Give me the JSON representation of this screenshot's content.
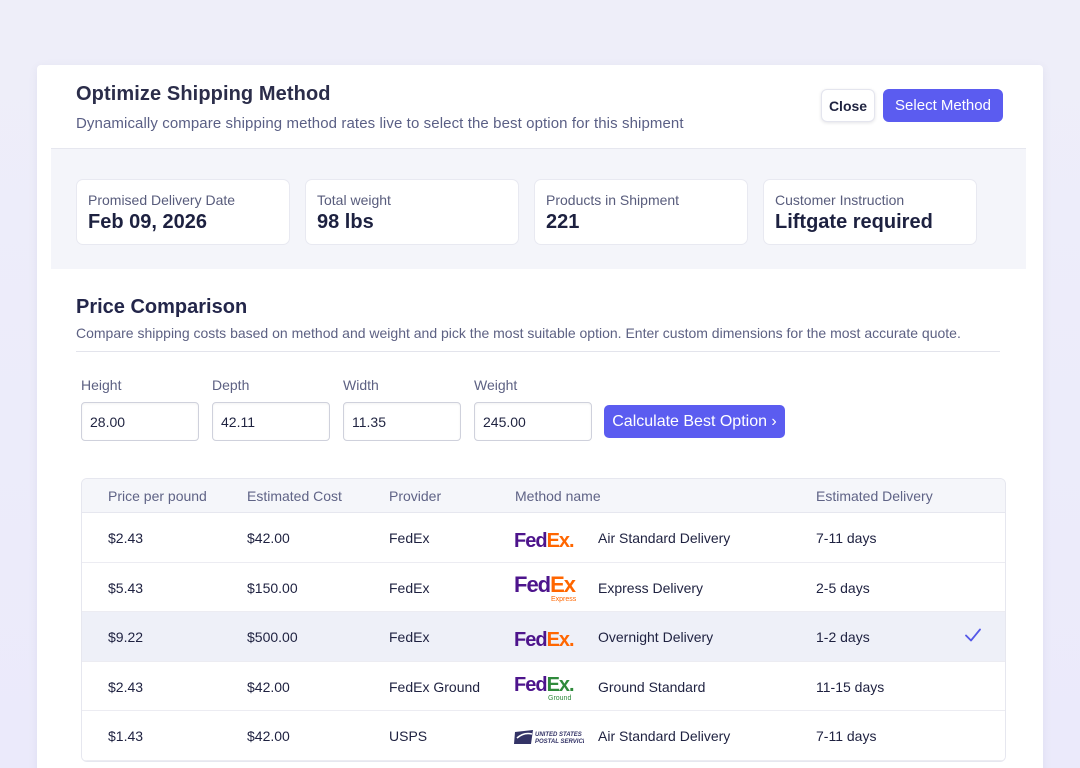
{
  "modal": {
    "title": "Optimize Shipping Method",
    "subtitle": "Dynamically compare shipping method rates live to select the best option for this shipment",
    "close_label": "Close",
    "select_label": "Select Method"
  },
  "summary": [
    {
      "label": "Promised Delivery Date",
      "value": "Feb 09, 2026"
    },
    {
      "label": "Total weight",
      "value": "98 lbs"
    },
    {
      "label": "Products in Shipment",
      "value": "221"
    },
    {
      "label": "Customer Instruction",
      "value": "Liftgate required"
    }
  ],
  "price_comparison": {
    "title": "Price Comparison",
    "description": "Compare shipping costs based on method and weight and pick the most suitable option. Enter custom dimensions for the most accurate quote."
  },
  "dimensions": {
    "height": {
      "label": "Height",
      "value": "28.00"
    },
    "depth": {
      "label": "Depth",
      "value": "42.11"
    },
    "width": {
      "label": "Width",
      "value": "11.35"
    },
    "weight": {
      "label": "Weight",
      "value": "245.00"
    },
    "calculate_label": "Calculate Best Option ›"
  },
  "table": {
    "headers": {
      "price": "Price per pound",
      "cost": "Estimated Cost",
      "provider": "Provider",
      "method": "Method name",
      "delivery": "Estimated Delivery"
    },
    "rows": [
      {
        "price": "$2.43",
        "cost": "$42.00",
        "provider": "FedEx",
        "logo": "Fed|Ex|.",
        "logo_sub": "",
        "method": "Air Standard Delivery",
        "delivery": "7-11 days",
        "selected": false
      },
      {
        "price": "$5.43",
        "cost": "$150.00",
        "provider": "FedEx",
        "logo": "Fed|Ex",
        "logo_sub": "Express",
        "method": "Express Delivery",
        "delivery": "2-5 days",
        "selected": false
      },
      {
        "price": "$9.22",
        "cost": "$500.00",
        "provider": "FedEx",
        "logo": "Fed|Ex|.",
        "logo_sub": "",
        "method": "Overnight Delivery",
        "delivery": "1-2 days",
        "selected": true
      },
      {
        "price": "$2.43",
        "cost": "$42.00",
        "provider": "FedEx Ground",
        "logo": "Fed|Ex|.",
        "logo_sub": "Ground",
        "method": "Ground Standard",
        "delivery": "11-15 days",
        "selected": false
      },
      {
        "price": "$1.43",
        "cost": "$42.00",
        "provider": "USPS",
        "logo": "UNITED STATES|POSTAL SERVICE",
        "logo_sub": "",
        "method": "Air Standard Delivery",
        "delivery": "7-11 days",
        "selected": false
      }
    ]
  },
  "colors": {
    "accent": "#5b5cf0",
    "fedex_purple": "#4d148c",
    "fedex_orange": "#ff6600",
    "fedex_ground_green": "#2f8a3b",
    "usps_blue": "#333366"
  },
  "icons": {
    "selected": "check-icon",
    "calculate": "chevron-right-icon"
  }
}
